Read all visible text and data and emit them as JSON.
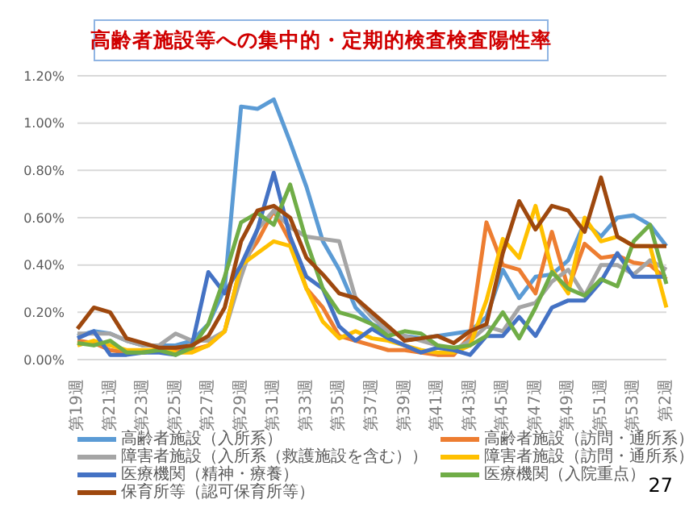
{
  "chart_data": {
    "type": "line",
    "title": "高齢者施設等への集中的・定期的検査検査陽性率",
    "categories": [
      "第19週",
      null,
      "第21週",
      null,
      "第23週",
      null,
      "第25週",
      null,
      "第27週",
      null,
      "第29週",
      null,
      "第31週",
      null,
      "第33週",
      null,
      "第35週",
      null,
      "第37週",
      null,
      "第39週",
      null,
      "第41週",
      null,
      "第43週",
      null,
      "第45週",
      null,
      "第47週",
      null,
      "第49週",
      null,
      "第51週",
      null,
      "第53週",
      null,
      "第2週"
    ],
    "series": [
      {
        "name": "高齢者施設（入所系）",
        "color": "#5b9bd5",
        "values": [
          0.1,
          0.12,
          0.11,
          0.08,
          0.06,
          0.06,
          0.06,
          0.08,
          0.15,
          0.3,
          1.07,
          1.06,
          1.1,
          0.92,
          0.73,
          0.5,
          0.38,
          0.22,
          0.15,
          0.12,
          0.1,
          0.09,
          0.1,
          0.11,
          0.12,
          0.18,
          0.38,
          0.26,
          0.35,
          0.36,
          0.42,
          0.58,
          0.52,
          0.6,
          0.61,
          0.57,
          0.48
        ]
      },
      {
        "name": "高齢者施設（訪問・通所系）",
        "color": "#ed7d31",
        "values": [
          0.08,
          0.07,
          0.04,
          0.03,
          0.03,
          0.04,
          0.04,
          0.04,
          0.06,
          0.12,
          0.4,
          0.5,
          0.63,
          0.5,
          0.3,
          0.22,
          0.1,
          0.08,
          0.06,
          0.04,
          0.04,
          0.03,
          0.02,
          0.02,
          0.1,
          0.58,
          0.4,
          0.38,
          0.28,
          0.54,
          0.3,
          0.49,
          0.43,
          0.44,
          0.41,
          0.4,
          0.34
        ]
      },
      {
        "name": "障害者施設（入所系（救護施設を含む））",
        "color": "#a5a5a5",
        "values": [
          0.11,
          0.11,
          0.11,
          0.08,
          0.06,
          0.06,
          0.11,
          0.08,
          0.08,
          0.12,
          0.35,
          0.55,
          0.63,
          0.56,
          0.52,
          0.51,
          0.5,
          0.26,
          0.18,
          0.12,
          0.1,
          0.08,
          0.06,
          0.04,
          0.08,
          0.14,
          0.12,
          0.22,
          0.24,
          0.33,
          0.38,
          0.27,
          0.4,
          0.4,
          0.36,
          0.42,
          0.38
        ]
      },
      {
        "name": "障害者施設（訪問・通所系）",
        "color": "#ffc000",
        "values": [
          0.06,
          0.08,
          0.06,
          0.04,
          0.04,
          0.04,
          0.03,
          0.03,
          0.06,
          0.12,
          0.4,
          0.45,
          0.5,
          0.48,
          0.3,
          0.16,
          0.09,
          0.12,
          0.09,
          0.08,
          0.06,
          0.04,
          0.03,
          0.03,
          0.06,
          0.25,
          0.51,
          0.43,
          0.65,
          0.38,
          0.28,
          0.6,
          0.5,
          0.52,
          0.48,
          0.48,
          0.22
        ]
      },
      {
        "name": "医療機関（精神・療養）",
        "color": "#4472c4",
        "values": [
          0.09,
          0.12,
          0.02,
          0.02,
          0.03,
          0.03,
          0.02,
          0.06,
          0.37,
          0.28,
          0.4,
          0.55,
          0.79,
          0.52,
          0.35,
          0.3,
          0.14,
          0.08,
          0.13,
          0.09,
          0.06,
          0.03,
          0.05,
          0.04,
          0.02,
          0.1,
          0.1,
          0.18,
          0.1,
          0.22,
          0.25,
          0.25,
          0.33,
          0.45,
          0.35,
          0.35,
          0.35
        ]
      },
      {
        "name": "医療機関（入院重点）",
        "color": "#70ad47",
        "values": [
          0.07,
          0.06,
          0.08,
          0.03,
          0.03,
          0.04,
          0.02,
          0.05,
          0.15,
          0.35,
          0.58,
          0.62,
          0.57,
          0.74,
          0.5,
          0.3,
          0.2,
          0.18,
          0.15,
          0.1,
          0.12,
          0.11,
          0.06,
          0.05,
          0.06,
          0.1,
          0.2,
          0.09,
          0.22,
          0.37,
          0.3,
          0.27,
          0.34,
          0.31,
          0.5,
          0.57,
          0.32
        ]
      },
      {
        "name": "保育所等（認可保育所等）",
        "color": "#9e480e",
        "values": [
          0.13,
          0.22,
          0.2,
          0.09,
          0.07,
          0.05,
          0.05,
          0.06,
          0.1,
          0.22,
          0.5,
          0.63,
          0.65,
          0.6,
          0.43,
          0.36,
          0.28,
          0.26,
          0.2,
          0.14,
          0.08,
          0.09,
          0.1,
          0.07,
          0.12,
          0.15,
          0.45,
          0.67,
          0.55,
          0.65,
          0.63,
          0.54,
          0.77,
          0.52,
          0.48,
          0.48,
          0.48
        ]
      }
    ],
    "ylim": [
      0,
      1.2
    ],
    "yticks": [
      {
        "value": 0,
        "label": "0.00%"
      },
      {
        "value": 0.2,
        "label": "0.20%"
      },
      {
        "value": 0.4,
        "label": "0.40%"
      },
      {
        "value": 0.6,
        "label": "0.60%"
      },
      {
        "value": 0.8,
        "label": "0.80%"
      },
      {
        "value": 1.0,
        "label": "1.00%"
      },
      {
        "value": 1.2,
        "label": "1.20%"
      }
    ],
    "grid": "y",
    "legend": "bottom",
    "marker": "none",
    "line_style": "solid",
    "annotations": [
      "27"
    ]
  }
}
